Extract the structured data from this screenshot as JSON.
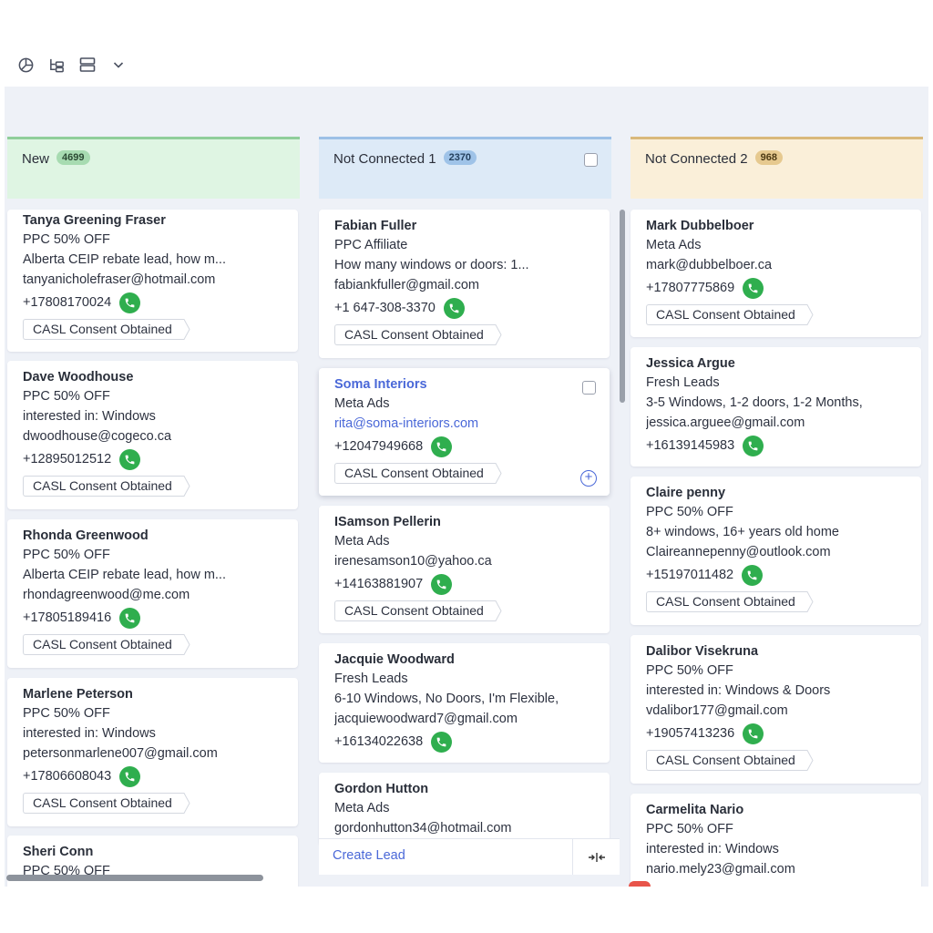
{
  "toolbar": {
    "icons": [
      "pie-chart-icon",
      "hierarchy-icon",
      "rows-view-icon",
      "chevron-down-icon"
    ]
  },
  "colors": {
    "new_bg": "#dff5e3",
    "new_border": "#8fce9a",
    "new_badge": "#a7dbb1",
    "nc1_bg": "#ddeaf7",
    "nc1_border": "#9cc0e6",
    "nc1_badge": "#9fc3e8",
    "nc2_bg": "#faefd9",
    "nc2_border": "#d9b97b",
    "nc2_badge": "#e6c98f",
    "phone": "#2fae4e",
    "link": "#4a68d8"
  },
  "columns": [
    {
      "title": "New",
      "count": "4699",
      "cards": [
        {
          "name": "Tanya Greening Fraser",
          "source": "PPC 50% OFF",
          "detail": "Alberta CEIP rebate lead, how m...",
          "email": "tanyanicholefraser@hotmail.com",
          "phone": "+17808170024",
          "tag": "CASL Consent Obtained"
        },
        {
          "name": "Dave Woodhouse",
          "source": "PPC 50% OFF",
          "detail": "interested in: Windows",
          "email": "dwoodhouse@cogeco.ca",
          "phone": "+12895012512",
          "tag": "CASL Consent Obtained"
        },
        {
          "name": "Rhonda Greenwood",
          "source": "PPC 50% OFF",
          "detail": "Alberta CEIP rebate lead, how m...",
          "email": "rhondagreenwood@me.com",
          "phone": "+17805189416",
          "tag": "CASL Consent Obtained"
        },
        {
          "name": "Marlene Peterson",
          "source": "PPC 50% OFF",
          "detail": "interested in: Windows",
          "email": "petersonmarlene007@gmail.com",
          "phone": "+17806608043",
          "tag": "CASL Consent Obtained"
        },
        {
          "name": "Sheri Conn",
          "source": "PPC 50% OFF"
        }
      ]
    },
    {
      "title": "Not Connected 1",
      "count": "2370",
      "cards": [
        {
          "name": "Fabian Fuller",
          "source": "PPC Affiliate",
          "detail": "How many windows or doors: 1...",
          "email": "fabiankfuller@gmail.com",
          "phone": "+1 647-308-3370",
          "tag": "CASL Consent Obtained"
        },
        {
          "name": "Soma Interiors",
          "source": "Meta Ads",
          "email": "rita@soma-interiors.com",
          "phone": "+12047949668",
          "tag": "CASL Consent Obtained"
        },
        {
          "name": "ISamson Pellerin",
          "source": "Meta Ads",
          "email": "irenesamson10@yahoo.ca",
          "phone": "+14163881907",
          "tag": "CASL Consent Obtained"
        },
        {
          "name": "Jacquie Woodward",
          "source": "Fresh Leads",
          "detail": "6-10 Windows, No Doors, I'm Flexible,",
          "email": "jacquiewoodward7@gmail.com",
          "phone": "+16134022638"
        },
        {
          "name": "Gordon Hutton",
          "source": "Meta Ads",
          "email": "gordonhutton34@hotmail.com"
        }
      ],
      "create_label": "Create Lead"
    },
    {
      "title": "Not Connected 2",
      "count": "968",
      "cards": [
        {
          "name": "Mark Dubbelboer",
          "source": "Meta Ads",
          "email": "mark@dubbelboer.ca",
          "phone": "+17807775869",
          "tag": "CASL Consent Obtained"
        },
        {
          "name": "Jessica Argue",
          "source": "Fresh Leads",
          "detail": "3-5 Windows, 1-2 doors, 1-2 Months,",
          "email": "jessica.arguee@gmail.com",
          "phone": "+16139145983"
        },
        {
          "name": "Claire penny",
          "source": "PPC 50% OFF",
          "detail": "8+ windows, 16+ years old home",
          "email": "Claireannepenny@outlook.com",
          "phone": "+15197011482",
          "tag": "CASL Consent Obtained"
        },
        {
          "name": "Dalibor Visekruna",
          "source": "PPC 50% OFF",
          "detail": "interested in: Windows & Doors",
          "email": "vdalibor177@gmail.com",
          "phone": "+19057413236",
          "tag": "CASL Consent Obtained"
        },
        {
          "name": "Carmelita Nario",
          "source": "PPC 50% OFF",
          "detail": "interested in: Windows",
          "email": "nario.mely23@gmail.com"
        }
      ]
    }
  ]
}
